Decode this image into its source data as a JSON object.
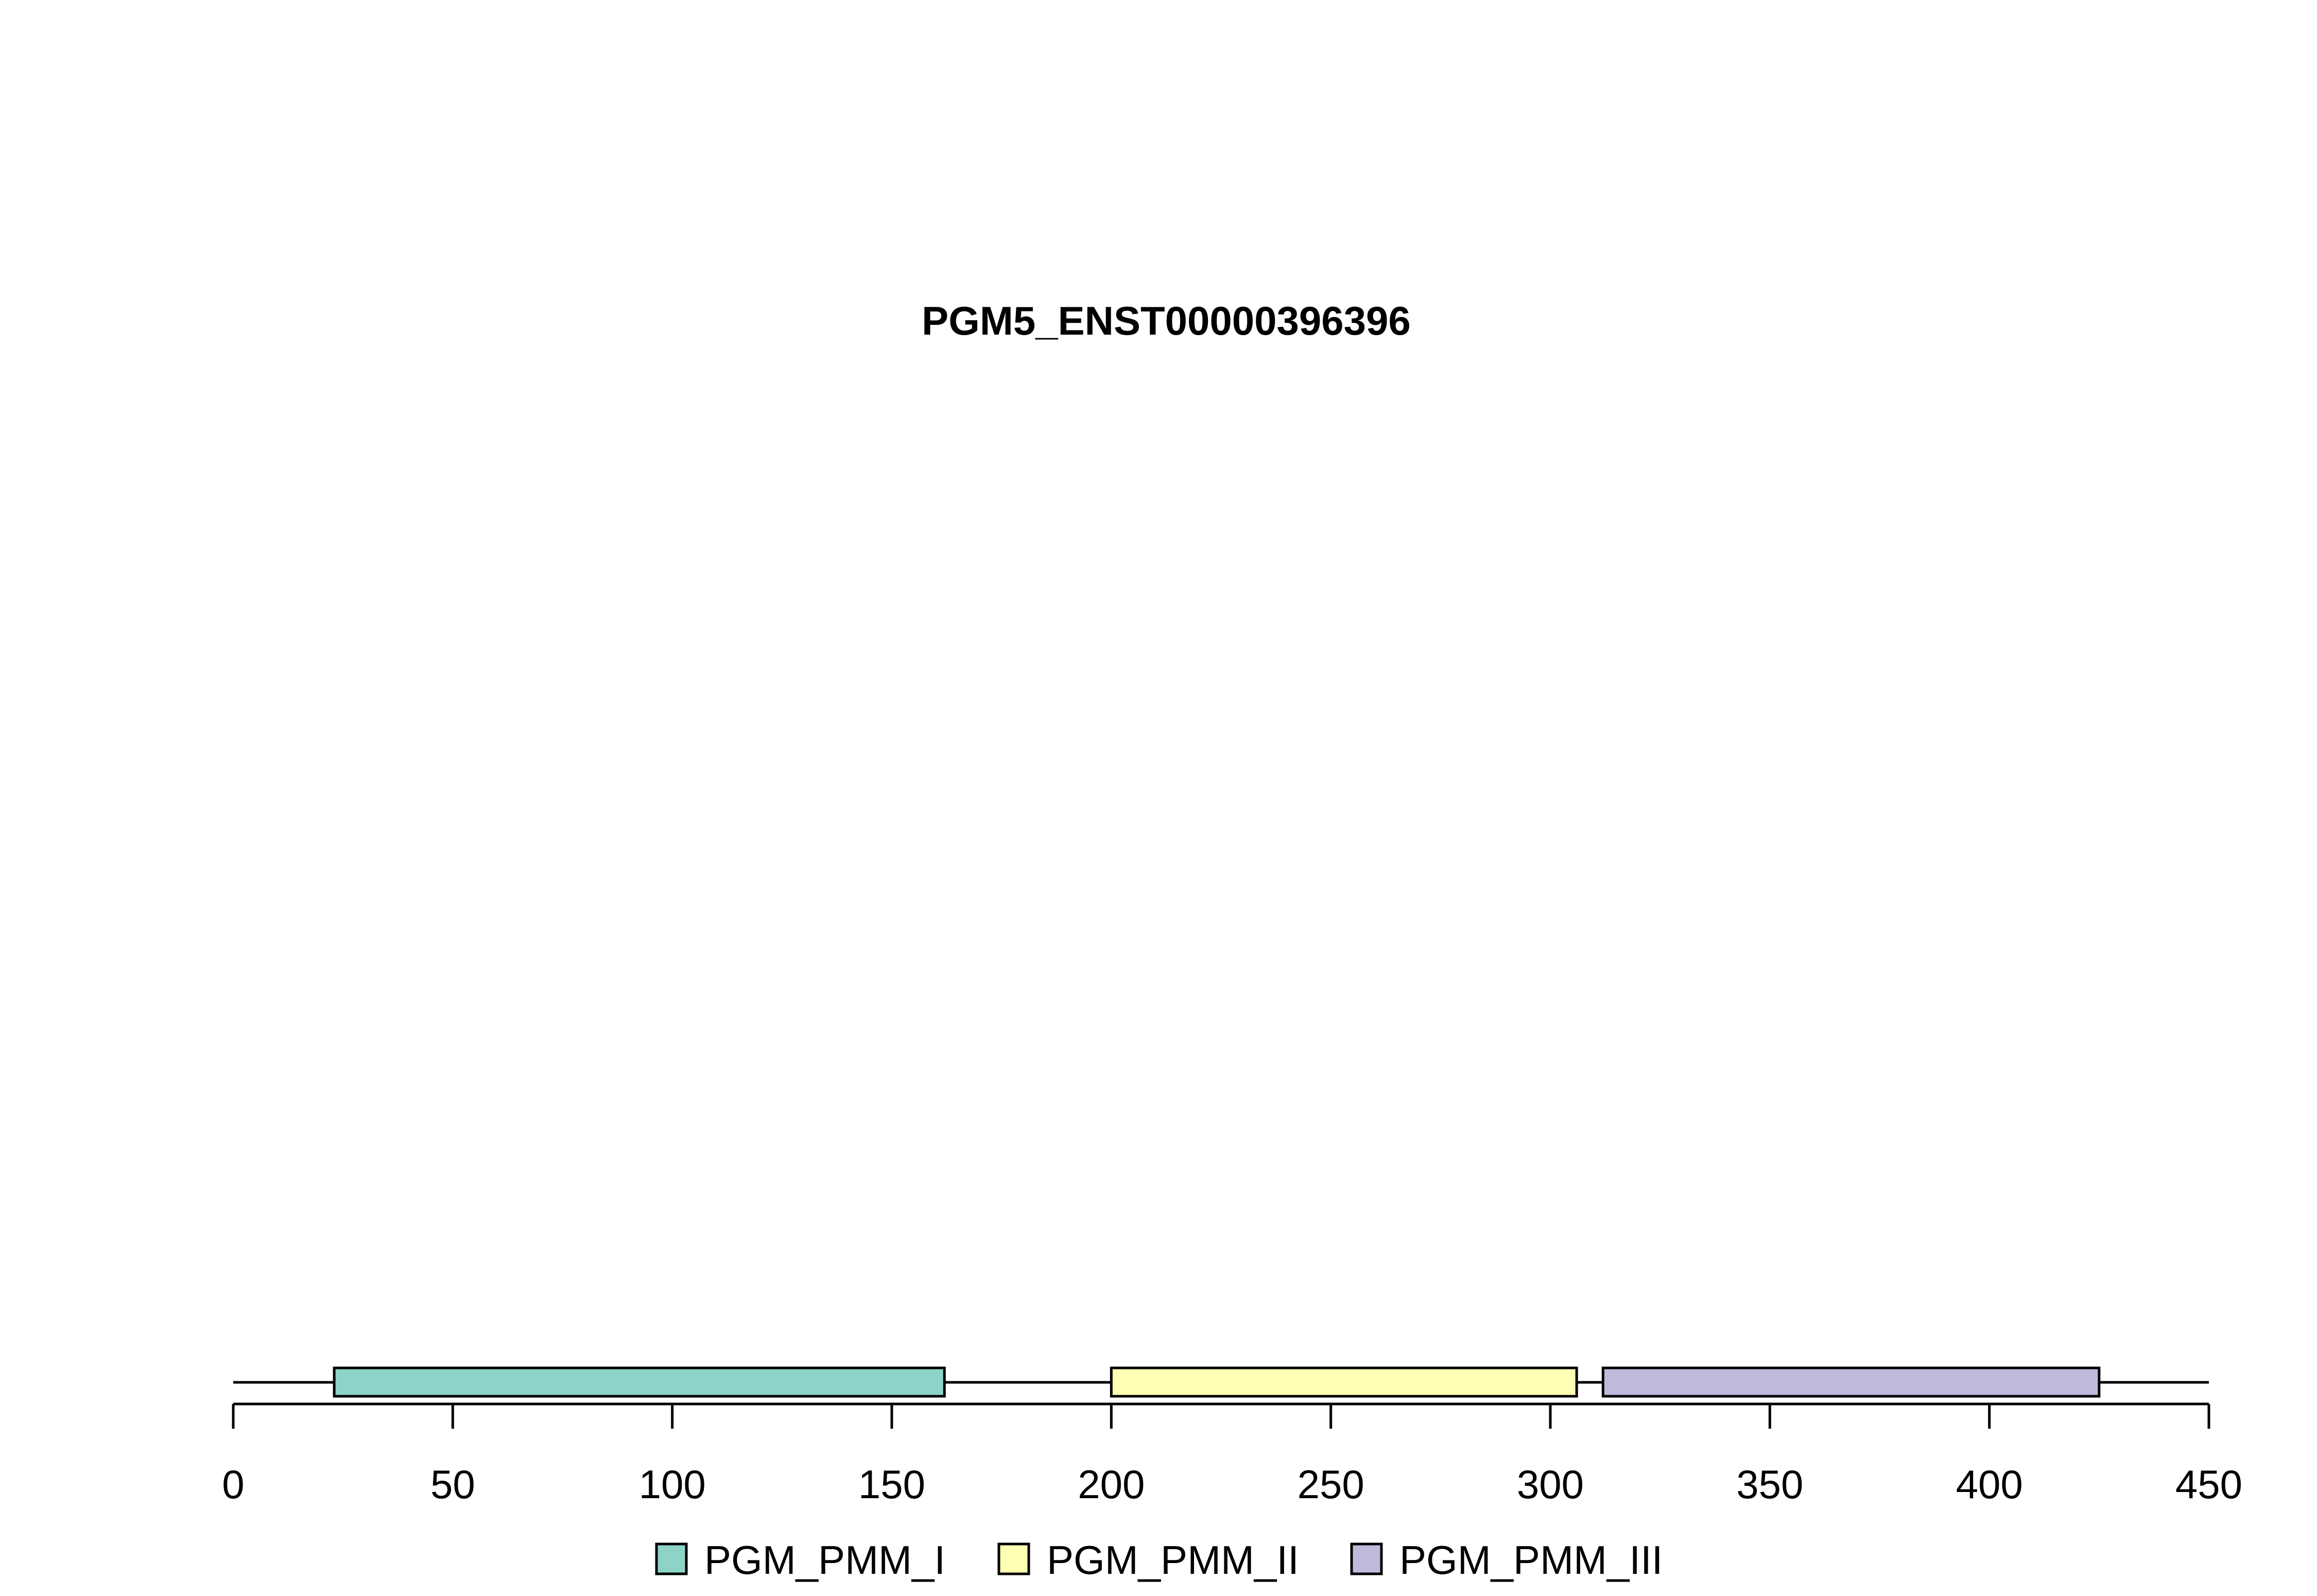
{
  "chart_data": {
    "type": "bar",
    "title": "PGM5_ENST00000396396",
    "xlabel": "",
    "ylabel": "",
    "xlim": [
      0,
      450
    ],
    "protein_length": 450,
    "x_ticks": [
      0,
      50,
      100,
      150,
      200,
      250,
      300,
      350,
      400,
      450
    ],
    "domains": [
      {
        "name": "PGM_PMM_I",
        "start": 23,
        "end": 162,
        "color": "#8DD3C7"
      },
      {
        "name": "PGM_PMM_II",
        "start": 200,
        "end": 306,
        "color": "#FFFFB3"
      },
      {
        "name": "PGM_PMM_III",
        "start": 312,
        "end": 425,
        "color": "#BEBADA"
      }
    ],
    "legend": [
      "PGM_PMM_I",
      "PGM_PMM_II",
      "PGM_PMM_III"
    ],
    "legend_position": "bottom",
    "grid": false
  }
}
